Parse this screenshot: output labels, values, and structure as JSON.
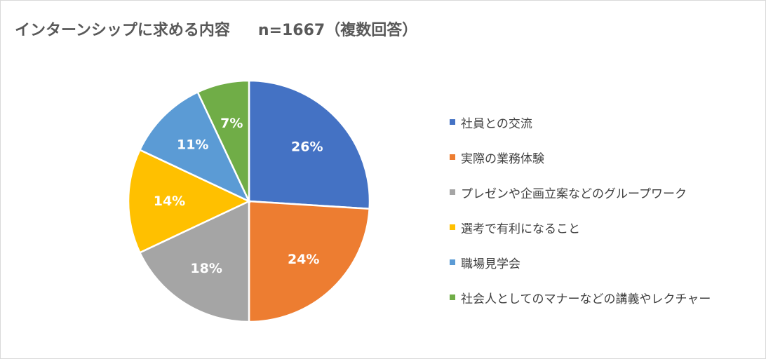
{
  "chart_data": {
    "type": "pie",
    "title": "インターンシップに求める内容",
    "subtitle": "n=1667（複数回答）",
    "categories": [
      "社員との交流",
      "実際の業務体験",
      "プレゼンや企画立案などのグループワーク",
      "選考で有利になること",
      "職場見学会",
      "社会人としてのマナーなどの講義やレクチャー"
    ],
    "values": [
      26,
      24,
      18,
      14,
      11,
      7
    ],
    "data_labels": [
      "26%",
      "24%",
      "18%",
      "14%",
      "11%",
      "7%"
    ],
    "colors": [
      "#4472c4",
      "#ed7d31",
      "#a5a5a5",
      "#ffc000",
      "#5b9bd5",
      "#70ad47"
    ],
    "legend_position": "right"
  }
}
